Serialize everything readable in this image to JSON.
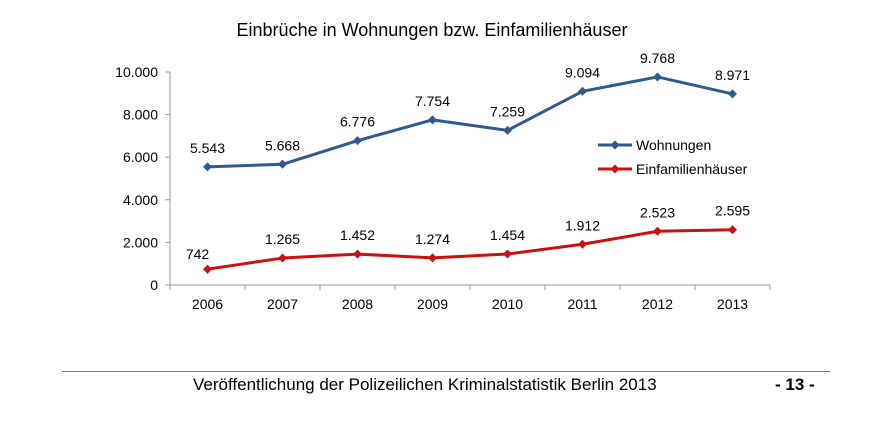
{
  "chart_data": {
    "type": "line",
    "title": "Einbrüche in Wohnungen bzw. Einfamilienhäuser",
    "xlabel": "",
    "ylabel": "",
    "categories": [
      "2006",
      "2007",
      "2008",
      "2009",
      "2010",
      "2011",
      "2012",
      "2013"
    ],
    "ylim": [
      0,
      10000
    ],
    "y_ticks": [
      0,
      2000,
      4000,
      6000,
      8000,
      10000
    ],
    "y_tick_labels": [
      "0",
      "2.000",
      "4.000",
      "6.000",
      "8.000",
      "10.000"
    ],
    "grid": false,
    "legend_position": "right",
    "series": [
      {
        "name": "Wohnungen",
        "color": "#2e5a8f",
        "marker": "diamond",
        "values": [
          5543,
          5668,
          6776,
          7754,
          7259,
          9094,
          9768,
          8971
        ],
        "labels": [
          "5.543",
          "5.668",
          "6.776",
          "7.754",
          "7.259",
          "9.094",
          "9.768",
          "8.971"
        ]
      },
      {
        "name": "Einfamilienhäuser",
        "color": "#cc1010",
        "marker": "diamond",
        "values": [
          742,
          1265,
          1452,
          1274,
          1454,
          1912,
          2523,
          2595
        ],
        "labels": [
          "742",
          "1.265",
          "1.452",
          "1.274",
          "1.454",
          "1.912",
          "2.523",
          "2.595"
        ]
      }
    ]
  },
  "footer": {
    "text": "Veröffentlichung der Polizeilichen Kriminalstatistik Berlin 2013",
    "page": "- 13 -"
  }
}
